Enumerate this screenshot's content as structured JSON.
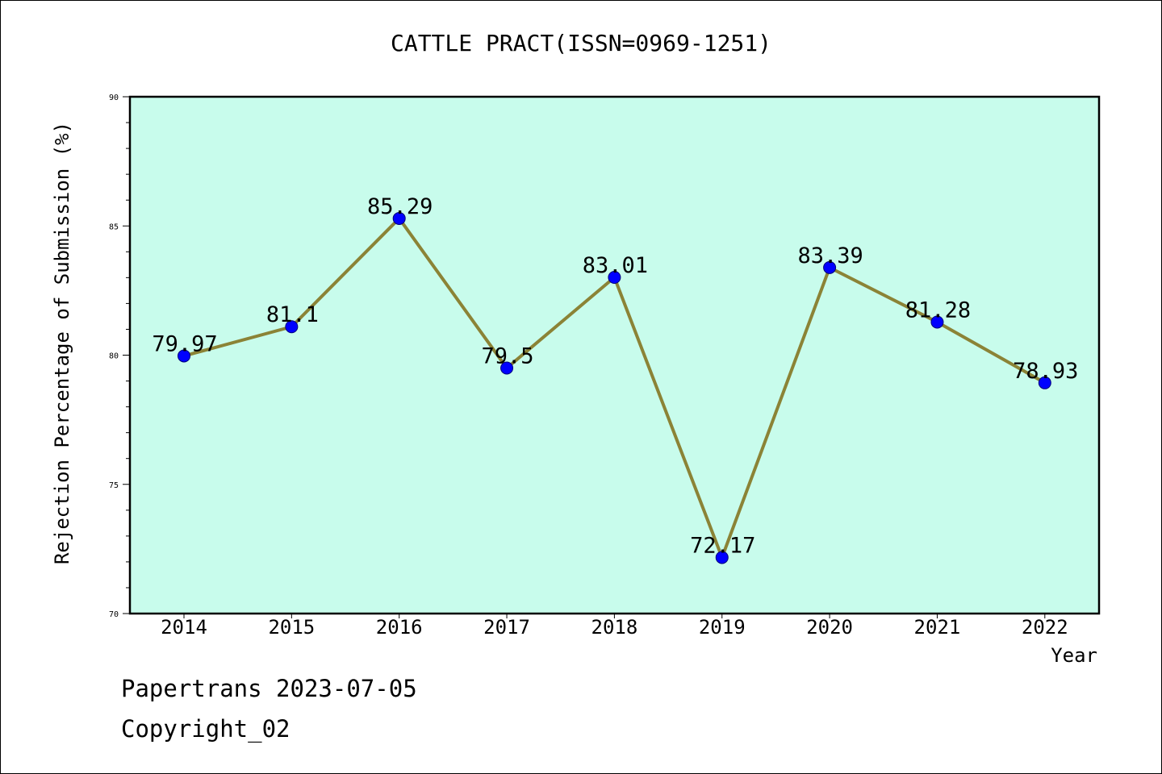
{
  "chart_data": {
    "type": "line",
    "title": "CATTLE PRACT(ISSN=0969-1251)",
    "xlabel": "Year",
    "ylabel": "Rejection Percentage of Submission (%)",
    "categories": [
      "2014",
      "2015",
      "2016",
      "2017",
      "2018",
      "2019",
      "2020",
      "2021",
      "2022"
    ],
    "values": [
      79.97,
      81.1,
      85.29,
      79.5,
      83.01,
      72.17,
      83.39,
      81.28,
      78.93
    ],
    "data_labels": [
      "79.97",
      "81.1",
      "85.29",
      "79.5",
      "83.01",
      "72.17",
      "83.39",
      "81.28",
      "78.93"
    ],
    "ylim": [
      70,
      90
    ],
    "yticks": [
      70,
      75,
      80,
      85,
      90
    ],
    "grid": false,
    "plot_background": "#c8fcec",
    "line_color": "#8b8336",
    "marker_color": "#0000ff"
  },
  "footer": {
    "date_line": "Papertrans 2023-07-05",
    "copyright": "Copyright_02"
  }
}
